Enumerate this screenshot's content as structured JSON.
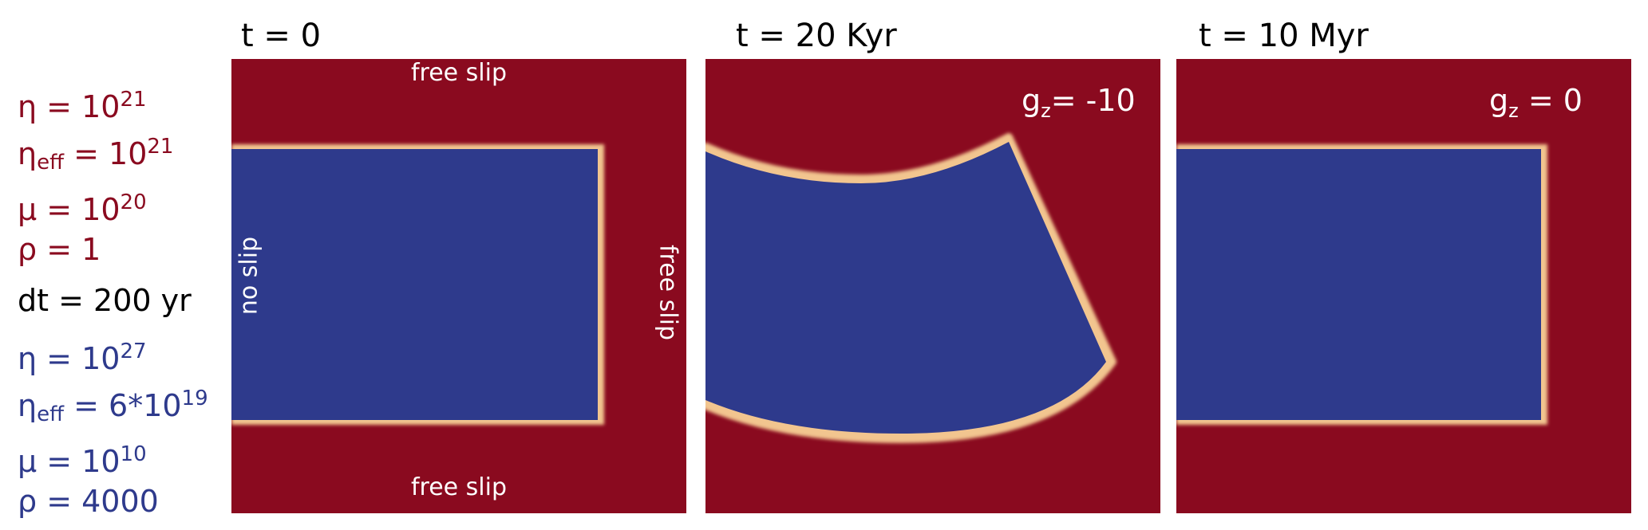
{
  "legend": {
    "weak": {
      "eta": {
        "lhs": "η",
        "eq": " = ",
        "base": "10",
        "exp": "21"
      },
      "eta_eff": {
        "lhs": "η",
        "sub": "eff",
        "eq": " = ",
        "base": "10",
        "exp": "21"
      },
      "mu": {
        "lhs": "μ",
        "eq": " = ",
        "base": "10",
        "exp": "20"
      },
      "rho": "ρ = 1"
    },
    "dt": "dt = 200 yr",
    "strong": {
      "eta": {
        "lhs": "η",
        "eq": " = ",
        "base": "10",
        "exp": "27"
      },
      "eta_eff": {
        "lhs": "η",
        "sub": "eff",
        "eq": " = ",
        "base": "6*10",
        "exp": "19"
      },
      "mu": {
        "lhs": "μ",
        "eq": " = ",
        "base": "10",
        "exp": "10"
      },
      "rho": "ρ = 4000"
    }
  },
  "panels": [
    {
      "title": "t = 0",
      "bc_top": "free slip",
      "bc_bottom": "free slip",
      "bc_left": "no slip",
      "bc_right": "free slip"
    },
    {
      "title": "t = 20 Kyr",
      "gravity": {
        "g": "g",
        "sub": "z",
        "eq": "= -10"
      }
    },
    {
      "title": "t = 10 Myr",
      "gravity": {
        "g": "g",
        "sub": "z",
        "eq": " = 0"
      }
    }
  ],
  "colors": {
    "weak_layer": "#8a0a1f",
    "strong_block": "#2e3a8c",
    "interface": "#f2c58f"
  }
}
